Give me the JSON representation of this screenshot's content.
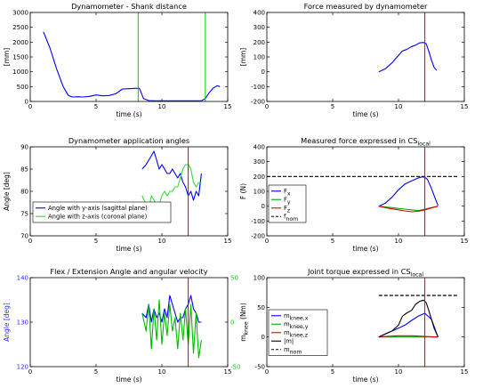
{
  "chart_data": [
    {
      "type": "line",
      "title": "Dynamometer - Shank distance",
      "xlabel": "time (s)",
      "ylabel": "[mm]",
      "xlim": [
        0,
        15
      ],
      "ylim": [
        0,
        3000
      ],
      "xticks": [
        0,
        5,
        10,
        15
      ],
      "yticks": [
        0,
        500,
        1000,
        1500,
        2000,
        2500,
        3000
      ],
      "grid": false,
      "series": [
        {
          "color": "#0000ff",
          "x": [
            1.0,
            1.5,
            2.0,
            2.5,
            2.9,
            3.2,
            3.6,
            4.0,
            4.5,
            5.0,
            5.5,
            6.0,
            6.5,
            7.0,
            7.5,
            8.0,
            8.3,
            8.6,
            9.0,
            9.5,
            10.0,
            10.5,
            11.0,
            11.5,
            12.0,
            12.5,
            13.0,
            13.3,
            13.6,
            13.9,
            14.2,
            14.4
          ],
          "y": [
            2350,
            1800,
            1100,
            500,
            200,
            150,
            160,
            150,
            170,
            220,
            190,
            200,
            260,
            420,
            430,
            440,
            440,
            100,
            30,
            20,
            20,
            20,
            20,
            20,
            20,
            20,
            20,
            100,
            300,
            450,
            530,
            500
          ]
        }
      ],
      "vlines": [
        {
          "x": 8.2,
          "color": "#00cc00"
        },
        {
          "x": 13.3,
          "color": "#00cc00"
        }
      ]
    },
    {
      "type": "line",
      "title": "Force measured by dynamometer",
      "xlabel": "time (s)",
      "ylabel": "[mm]",
      "xlim": [
        0,
        15
      ],
      "ylim": [
        -200,
        400
      ],
      "xticks": [
        0,
        5,
        10,
        15
      ],
      "yticks": [
        -200,
        -100,
        0,
        100,
        200,
        300,
        400
      ],
      "grid": false,
      "series": [
        {
          "color": "#0000ff",
          "x": [
            8.5,
            9.0,
            9.5,
            10.0,
            10.3,
            10.6,
            11.0,
            11.3,
            11.6,
            11.9,
            12.1,
            12.3,
            12.5,
            12.7,
            12.9
          ],
          "y": [
            0,
            20,
            60,
            110,
            140,
            150,
            170,
            180,
            195,
            198,
            190,
            140,
            80,
            30,
            10
          ]
        }
      ],
      "vlines": [
        {
          "x": 12.0,
          "color": "#e00000"
        }
      ]
    },
    {
      "type": "line",
      "title": "Dynamometer application angles",
      "xlabel": "time (s)",
      "ylabel": "Angle [deg]",
      "xlim": [
        0,
        15
      ],
      "ylim": [
        70,
        90
      ],
      "xticks": [
        0,
        5,
        10,
        15
      ],
      "yticks": [
        70,
        75,
        80,
        85,
        90
      ],
      "grid": false,
      "legend": "bottom-left",
      "series": [
        {
          "name": "Angle with y-axis (sagittal plane)",
          "color": "#0000ff",
          "x": [
            8.5,
            8.8,
            9.0,
            9.2,
            9.4,
            9.6,
            9.8,
            10.0,
            10.2,
            10.4,
            10.6,
            10.8,
            11.0,
            11.2,
            11.4,
            11.6,
            11.8,
            12.0,
            12.2,
            12.4,
            12.6,
            12.8,
            13.0
          ],
          "y": [
            85,
            86,
            87,
            88,
            89,
            87,
            85,
            86,
            85,
            84,
            84,
            85,
            84,
            83,
            84,
            82,
            81,
            79,
            80,
            78,
            80,
            79,
            84
          ]
        },
        {
          "name": "Angle with z-axis (coronal plane)",
          "color": "#33dd33",
          "x": [
            8.5,
            8.8,
            9.0,
            9.2,
            9.4,
            9.6,
            9.8,
            10.0,
            10.2,
            10.4,
            10.6,
            10.8,
            11.0,
            11.2,
            11.4,
            11.6,
            11.8,
            12.0,
            12.2,
            12.4,
            12.6,
            12.8,
            13.0
          ],
          "y": [
            79,
            77,
            76,
            79,
            78,
            77,
            77,
            79,
            80,
            79,
            80,
            80,
            81,
            81,
            83,
            85,
            86,
            86,
            85,
            82,
            81,
            82,
            82
          ]
        }
      ],
      "vlines": [
        {
          "x": 12.0,
          "color": "#e00000"
        }
      ]
    },
    {
      "type": "line",
      "title": "Measured force expressed in CS",
      "title_subscript": "local",
      "xlabel": "time (s)",
      "ylabel": "F (N)",
      "xlim": [
        0,
        15
      ],
      "ylim": [
        -200,
        400
      ],
      "xticks": [
        0,
        5,
        10,
        15
      ],
      "yticks": [
        -200,
        -100,
        0,
        100,
        200,
        300,
        400
      ],
      "grid": false,
      "legend": "bottom-left",
      "series": [
        {
          "name": "F",
          "subscript": "x",
          "color": "#0000ff",
          "x": [
            8.5,
            9.0,
            9.5,
            10.0,
            10.5,
            11.0,
            11.5,
            11.8,
            12.0,
            12.2,
            12.5,
            12.8,
            13.0
          ],
          "y": [
            0,
            20,
            60,
            110,
            150,
            170,
            190,
            198,
            195,
            180,
            120,
            50,
            5
          ]
        },
        {
          "name": "F",
          "subscript": "y",
          "color": "#00aa00",
          "x": [
            8.5,
            9.0,
            9.5,
            10.0,
            10.5,
            11.0,
            11.5,
            12.0,
            12.5,
            13.0
          ],
          "y": [
            0,
            -5,
            -10,
            -15,
            -20,
            -25,
            -30,
            -20,
            -10,
            0
          ]
        },
        {
          "name": "F",
          "subscript": "z",
          "color": "#dd0000",
          "x": [
            8.5,
            9.0,
            9.5,
            10.0,
            10.5,
            11.0,
            11.5,
            12.0,
            12.5,
            13.0
          ],
          "y": [
            0,
            -10,
            -18,
            -25,
            -32,
            -38,
            -35,
            -25,
            -12,
            0
          ]
        },
        {
          "name": "f",
          "subscript": "nom",
          "color": "#000000",
          "dashed": true,
          "x": [
            0,
            14.5
          ],
          "y": [
            200,
            200
          ]
        }
      ],
      "vlines": [
        {
          "x": 12.0,
          "color": "#e00000"
        }
      ]
    },
    {
      "type": "line",
      "title": "Flex / Extension Angle and angular velocity",
      "xlabel": "time (s)",
      "ylabel": "Angle [deg]",
      "xlim": [
        0,
        15
      ],
      "ylim": [
        120,
        140
      ],
      "ylim_right": [
        -50,
        50
      ],
      "xticks": [
        0,
        5,
        10,
        15
      ],
      "yticks": [
        120,
        130,
        140
      ],
      "yticks_right": [
        -50,
        0,
        50
      ],
      "grid": false,
      "series": [
        {
          "color": "#0000ff",
          "axis": "left",
          "x": [
            8.5,
            8.8,
            9.0,
            9.2,
            9.4,
            9.6,
            9.8,
            10.0,
            10.2,
            10.4,
            10.6,
            10.8,
            11.0,
            11.2,
            11.4,
            11.6,
            11.8,
            12.0,
            12.2,
            12.4,
            12.6,
            12.8,
            13.0
          ],
          "y": [
            132,
            131,
            134,
            130,
            133,
            131,
            132,
            130,
            133,
            131,
            136,
            134,
            132,
            130,
            131,
            131,
            133,
            134,
            136,
            133,
            132,
            130,
            130
          ]
        },
        {
          "color": "#00bb00",
          "axis": "right",
          "x": [
            8.5,
            8.8,
            9.0,
            9.2,
            9.4,
            9.6,
            9.8,
            10.0,
            10.2,
            10.4,
            10.6,
            10.8,
            11.0,
            11.2,
            11.4,
            11.6,
            11.8,
            12.0,
            12.2,
            12.4,
            12.6,
            12.8,
            13.0
          ],
          "y": [
            10,
            -10,
            20,
            -30,
            15,
            -20,
            25,
            -25,
            10,
            -15,
            20,
            -10,
            5,
            -30,
            10,
            -20,
            15,
            -25,
            20,
            -35,
            10,
            -40,
            -20
          ]
        }
      ],
      "vlines": [
        {
          "x": 12.0,
          "color": "#e00000"
        }
      ]
    },
    {
      "type": "line",
      "title": "Joint torque expressed in CS",
      "title_subscript": "local",
      "xlabel": "time (s)",
      "ylabel": "m",
      "ylabel_subscript": "knee",
      "ylabel_suffix": " (Nm)",
      "xlim": [
        0,
        15
      ],
      "ylim": [
        -50,
        100
      ],
      "xticks": [
        0,
        5,
        10,
        15
      ],
      "yticks": [
        -50,
        0,
        50,
        100
      ],
      "grid": false,
      "legend": "bottom-left",
      "series": [
        {
          "name": "m",
          "subscript": "knee,x",
          "color": "#0000ff",
          "x": [
            8.5,
            9.0,
            9.5,
            10.0,
            10.5,
            11.0,
            11.5,
            12.0,
            12.5,
            13.0
          ],
          "y": [
            0,
            5,
            10,
            15,
            20,
            28,
            35,
            40,
            30,
            0
          ]
        },
        {
          "name": "m",
          "subscript": "knee,y",
          "color": "#00aa00",
          "x": [
            8.5,
            13.0
          ],
          "y": [
            0,
            0
          ]
        },
        {
          "name": "m",
          "subscript": "knee,z",
          "color": "#dd0000",
          "x": [
            8.5,
            9.0,
            10.0,
            11.0,
            12.0,
            13.0
          ],
          "y": [
            0,
            1,
            2,
            2,
            1,
            0
          ]
        },
        {
          "name": "|m|",
          "color": "#000000",
          "x": [
            8.5,
            9.0,
            9.5,
            10.0,
            10.3,
            10.6,
            11.0,
            11.3,
            11.6,
            11.9,
            12.1,
            12.3,
            12.5,
            12.7,
            13.0
          ],
          "y": [
            0,
            5,
            10,
            20,
            35,
            40,
            45,
            55,
            60,
            62,
            58,
            45,
            30,
            15,
            0
          ]
        },
        {
          "name": "m",
          "subscript": "nom",
          "color": "#000000",
          "dashed": true,
          "x": [
            8.5,
            14.5
          ],
          "y": [
            70,
            70
          ]
        }
      ],
      "vlines": [
        {
          "x": 12.0,
          "color": "#e00000"
        }
      ]
    }
  ]
}
